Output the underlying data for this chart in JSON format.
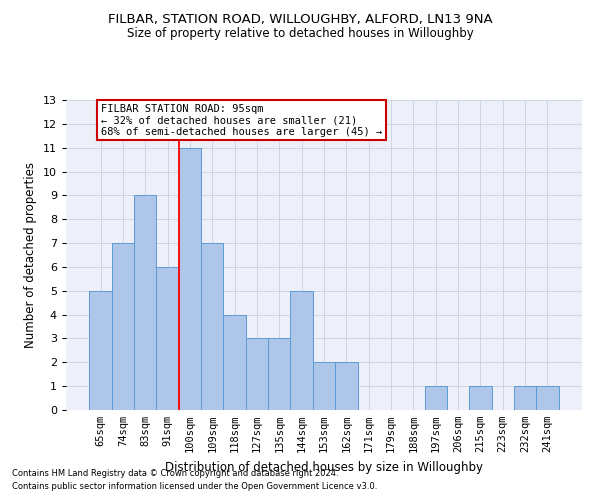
{
  "title": "FILBAR, STATION ROAD, WILLOUGHBY, ALFORD, LN13 9NA",
  "subtitle": "Size of property relative to detached houses in Willoughby",
  "xlabel": "Distribution of detached houses by size in Willoughby",
  "ylabel": "Number of detached properties",
  "categories": [
    "65sqm",
    "74sqm",
    "83sqm",
    "91sqm",
    "100sqm",
    "109sqm",
    "118sqm",
    "127sqm",
    "135sqm",
    "144sqm",
    "153sqm",
    "162sqm",
    "171sqm",
    "179sqm",
    "188sqm",
    "197sqm",
    "206sqm",
    "215sqm",
    "223sqm",
    "232sqm",
    "241sqm"
  ],
  "values": [
    5,
    7,
    9,
    6,
    11,
    7,
    4,
    3,
    3,
    5,
    2,
    2,
    0,
    0,
    0,
    1,
    0,
    1,
    0,
    1,
    1
  ],
  "bar_color": "#aec6e8",
  "bar_edge_color": "#5b9bd5",
  "ylim": [
    0,
    13
  ],
  "yticks": [
    0,
    1,
    2,
    3,
    4,
    5,
    6,
    7,
    8,
    9,
    10,
    11,
    12,
    13
  ],
  "red_line_x": 3.5,
  "annotation_line1": "FILBAR STATION ROAD: 95sqm",
  "annotation_line2": "← 32% of detached houses are smaller (21)",
  "annotation_line3": "68% of semi-detached houses are larger (45) →",
  "annotation_box_color": "#ffffff",
  "annotation_box_edge": "#cc0000",
  "footer_line1": "Contains HM Land Registry data © Crown copyright and database right 2024.",
  "footer_line2": "Contains public sector information licensed under the Open Government Licence v3.0.",
  "grid_color": "#c8d0e0",
  "background_color": "#edf0f8",
  "title_fontsize": 9.5,
  "subtitle_fontsize": 8.5
}
